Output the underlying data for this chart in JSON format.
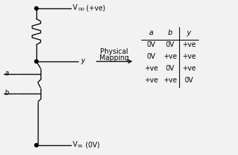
{
  "bg_color": "#f2f2f2",
  "vdd_label": "V",
  "vdd_sub": "DD",
  "vdd_suffix": " (+ve)",
  "vss_label": "V",
  "vss_sub": "SS",
  "vss_suffix": " (0V)",
  "y_label": "y",
  "a_label": "a",
  "b_label": "b",
  "arrow_text1": "Physical",
  "arrow_text2": "Mapping",
  "table_headers": [
    "a",
    "b",
    "y"
  ],
  "table_rows": [
    [
      "0V",
      "0V",
      "+ve"
    ],
    [
      "0V",
      "+ve",
      "+ve"
    ],
    [
      "+ve",
      "0V",
      "+ve"
    ],
    [
      "+ve",
      "+ve",
      "0V"
    ]
  ],
  "line_color": "#000000",
  "text_color": "#000000",
  "figw": 3.4,
  "figh": 2.22,
  "dpi": 100
}
